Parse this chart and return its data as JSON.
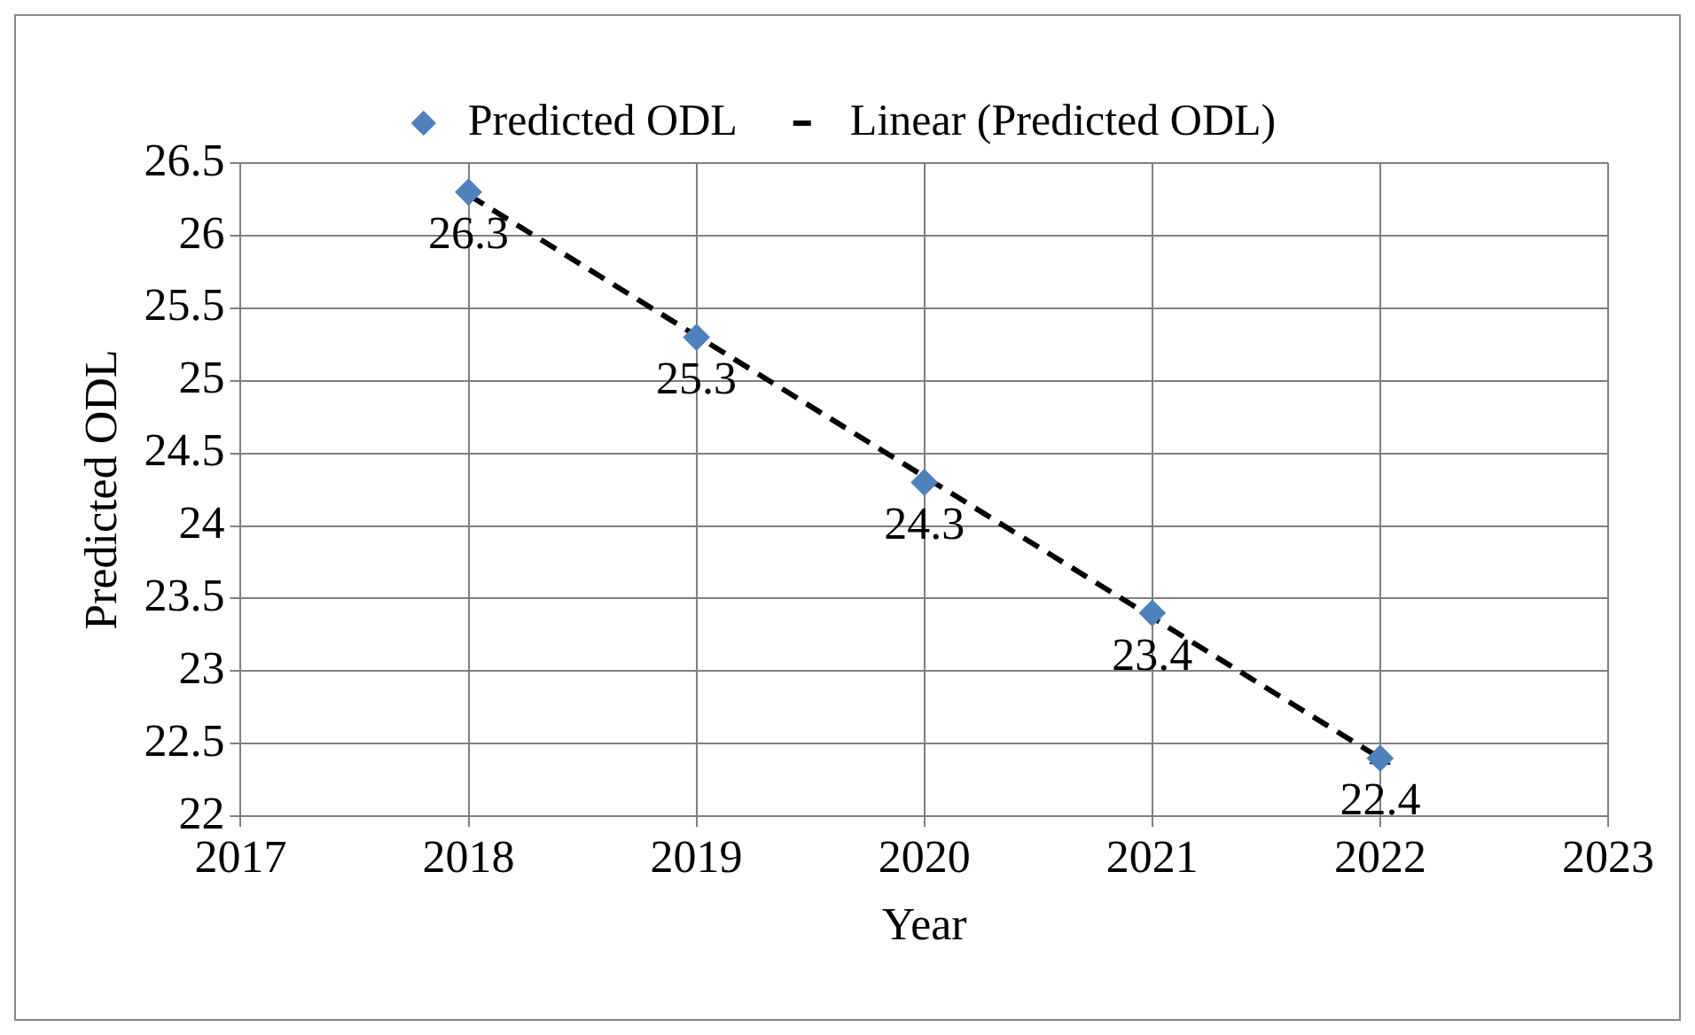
{
  "chart_data": {
    "type": "scatter",
    "xlabel": "Year",
    "ylabel": "Predicted ODL",
    "x": [
      2018,
      2019,
      2020,
      2021,
      2022
    ],
    "series": [
      {
        "name": "Predicted ODL",
        "color": "#4f81bd",
        "marker": "diamond",
        "values": [
          26.3,
          25.3,
          24.3,
          23.4,
          22.4
        ],
        "value_labels": [
          "26.3",
          "25.3",
          "24.3",
          "23.4",
          "22.4"
        ]
      },
      {
        "name": "Linear (Predicted ODL)",
        "type": "line",
        "color": "#000000",
        "line_style": "dashed",
        "marker": "triangle",
        "x": [
          2018,
          2022
        ],
        "values": [
          26.28,
          22.4
        ]
      }
    ],
    "xlim": [
      2017,
      2023
    ],
    "xticks": [
      2017,
      2018,
      2019,
      2020,
      2021,
      2022,
      2023
    ],
    "ylim": [
      22,
      26.5
    ],
    "yticks": [
      22,
      22.5,
      23,
      23.5,
      24,
      24.5,
      25,
      25.5,
      26,
      26.5
    ],
    "grid": true,
    "legend": "top"
  }
}
